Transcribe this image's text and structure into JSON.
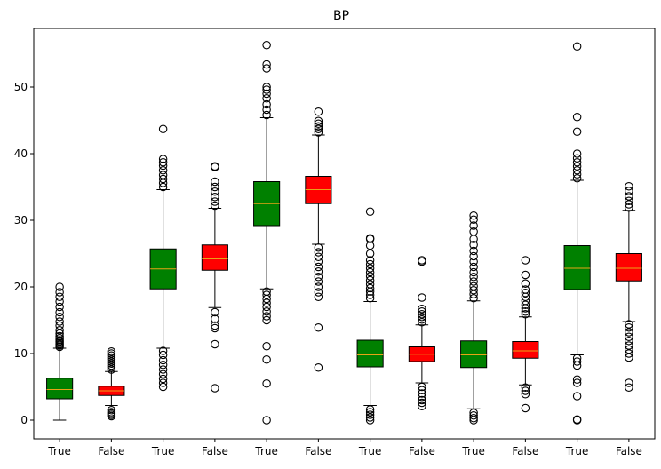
{
  "chart_data": {
    "type": "boxplot",
    "title": "BP",
    "xlabel": "",
    "ylabel": "",
    "ylim": [
      -2.8,
      58.8
    ],
    "yticks": [
      0,
      10,
      20,
      30,
      40,
      50
    ],
    "median_color": "#e8a317",
    "boxes": [
      {
        "label": "True",
        "color": "#008000",
        "whislo": 0.0,
        "q1": 3.2,
        "med": 4.6,
        "q3": 6.3,
        "whishi": 10.8,
        "fliers": [
          11.0,
          11.2,
          11.4,
          11.6,
          11.8,
          12.0,
          12.3,
          12.6,
          13.0,
          13.5,
          14.2,
          14.8,
          15.5,
          16.2,
          17.0,
          17.8,
          18.5,
          19.2,
          20.0
        ]
      },
      {
        "label": "False",
        "color": "#ff0000",
        "whislo": 2.2,
        "q1": 3.7,
        "med": 4.4,
        "q3": 5.1,
        "whishi": 7.3,
        "fliers": [
          0.6,
          0.8,
          1.0,
          1.2,
          1.5,
          7.6,
          7.9,
          8.2,
          8.5,
          8.8,
          9.1,
          9.4,
          9.7,
          10.0,
          10.3
        ]
      },
      {
        "label": "True",
        "color": "#008000",
        "whislo": 10.8,
        "q1": 19.7,
        "med": 22.7,
        "q3": 25.7,
        "whishi": 34.6,
        "fliers": [
          5.0,
          5.6,
          6.2,
          6.9,
          7.6,
          8.3,
          9.0,
          9.8,
          10.4,
          35.0,
          35.6,
          36.2,
          36.8,
          37.5,
          38.2,
          38.7,
          39.2,
          43.7
        ]
      },
      {
        "label": "False",
        "color": "#ff0000",
        "whislo": 16.9,
        "q1": 22.5,
        "med": 24.2,
        "q3": 26.3,
        "whishi": 31.8,
        "fliers": [
          4.8,
          11.4,
          13.8,
          14.2,
          15.2,
          16.2,
          32.2,
          32.8,
          33.5,
          34.3,
          35.0,
          35.8,
          38.0,
          38.1
        ]
      },
      {
        "label": "True",
        "color": "#008000",
        "whislo": 19.7,
        "q1": 29.2,
        "med": 32.5,
        "q3": 35.8,
        "whishi": 45.4,
        "fliers": [
          0.0,
          5.5,
          9.1,
          11.1,
          15.0,
          15.6,
          16.3,
          17.0,
          17.6,
          18.2,
          18.8,
          19.3,
          45.8,
          46.6,
          47.4,
          48.3,
          49.0,
          49.6,
          50.0,
          52.8,
          53.4,
          56.3
        ]
      },
      {
        "label": "False",
        "color": "#ff0000",
        "whislo": 26.4,
        "q1": 32.5,
        "med": 34.6,
        "q3": 36.6,
        "whishi": 42.8,
        "fliers": [
          7.9,
          13.9,
          18.5,
          19.2,
          20.0,
          20.8,
          21.5,
          22.3,
          23.0,
          23.8,
          24.5,
          25.2,
          25.9,
          43.2,
          43.7,
          44.1,
          44.5,
          44.9,
          46.3
        ]
      },
      {
        "label": "True",
        "color": "#008000",
        "whislo": 2.2,
        "q1": 8.0,
        "med": 9.8,
        "q3": 12.0,
        "whishi": 17.8,
        "fliers": [
          0.0,
          0.4,
          0.8,
          1.2,
          1.6,
          18.3,
          18.8,
          19.3,
          19.8,
          20.4,
          21.0,
          21.6,
          22.2,
          22.8,
          23.4,
          24.0,
          25.0,
          26.2,
          27.2,
          27.3,
          31.3
        ]
      },
      {
        "label": "False",
        "color": "#ff0000",
        "whislo": 5.6,
        "q1": 8.8,
        "med": 9.9,
        "q3": 11.0,
        "whishi": 14.3,
        "fliers": [
          2.1,
          2.6,
          3.0,
          3.5,
          4.0,
          4.5,
          5.0,
          14.7,
          15.1,
          15.5,
          15.9,
          16.3,
          16.7,
          18.4,
          23.8,
          24.0
        ]
      },
      {
        "label": "True",
        "color": "#008000",
        "whislo": 1.7,
        "q1": 7.9,
        "med": 9.8,
        "q3": 11.9,
        "whishi": 17.9,
        "fliers": [
          0.0,
          0.3,
          0.7,
          1.1,
          18.3,
          18.9,
          19.5,
          20.1,
          20.8,
          21.5,
          22.2,
          23.0,
          23.8,
          24.6,
          25.4,
          26.3,
          27.2,
          28.3,
          29.2,
          30.1,
          30.7
        ]
      },
      {
        "label": "False",
        "color": "#ff0000",
        "whislo": 5.3,
        "q1": 9.3,
        "med": 10.4,
        "q3": 11.8,
        "whishi": 15.5,
        "fliers": [
          1.8,
          3.9,
          4.4,
          4.9,
          15.9,
          16.3,
          16.8,
          17.3,
          17.9,
          18.5,
          19.1,
          19.6,
          20.5,
          21.8,
          24.0
        ]
      },
      {
        "label": "True",
        "color": "#008000",
        "whislo": 9.8,
        "q1": 19.6,
        "med": 22.8,
        "q3": 26.2,
        "whishi": 36.0,
        "fliers": [
          0.0,
          0.1,
          3.6,
          5.6,
          6.1,
          8.2,
          8.8,
          9.3,
          36.3,
          36.9,
          37.5,
          38.1,
          38.7,
          39.3,
          40.0,
          43.3,
          45.5,
          56.1
        ]
      },
      {
        "label": "False",
        "color": "#ff0000",
        "whislo": 14.8,
        "q1": 20.9,
        "med": 22.8,
        "q3": 25.0,
        "whishi": 31.5,
        "fliers": [
          4.9,
          5.6,
          9.4,
          10.0,
          10.6,
          11.2,
          11.9,
          12.5,
          13.2,
          13.9,
          14.4,
          31.9,
          32.4,
          32.9,
          33.6,
          34.4,
          35.1
        ]
      }
    ]
  }
}
